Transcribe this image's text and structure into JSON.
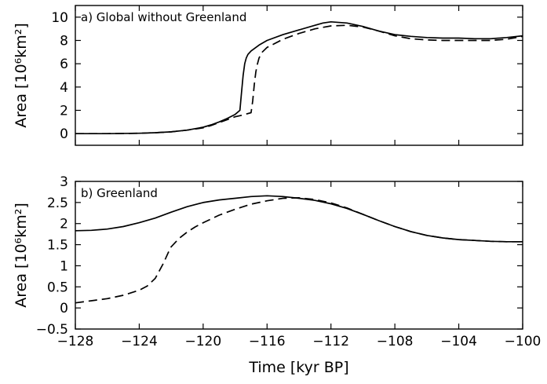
{
  "chart_data": [
    {
      "type": "line",
      "title": "a)  Global without Greenland",
      "xlabel": "",
      "ylabel": "Area [10⁶km²]",
      "xlim": [
        -128,
        -100
      ],
      "ylim": [
        -1,
        11
      ],
      "yticks": [
        "0",
        "2",
        "4",
        "6",
        "8",
        "10"
      ],
      "ytick_values": [
        0,
        2,
        4,
        6,
        8,
        10
      ],
      "grid": false,
      "series": [
        {
          "style": "solid",
          "color": "#000000",
          "x": [
            -128,
            -126,
            -124,
            -123,
            -122,
            -121,
            -120,
            -119.5,
            -119,
            -118.5,
            -118,
            -117.7,
            -117.6,
            -117.5,
            -117.4,
            -117.3,
            -117.2,
            -117,
            -116.5,
            -116,
            -115,
            -114,
            -113,
            -112.5,
            -112,
            -111,
            -110,
            -109,
            -108,
            -107,
            -106,
            -105,
            -104,
            -103,
            -102,
            -101,
            -100
          ],
          "y": [
            0,
            0,
            0.03,
            0.08,
            0.15,
            0.3,
            0.55,
            0.75,
            1.0,
            1.3,
            1.65,
            2.0,
            3.5,
            5.0,
            6.0,
            6.5,
            6.8,
            7.1,
            7.6,
            8.0,
            8.5,
            8.9,
            9.3,
            9.5,
            9.6,
            9.5,
            9.2,
            8.8,
            8.5,
            8.35,
            8.25,
            8.2,
            8.2,
            8.15,
            8.15,
            8.25,
            8.4
          ]
        },
        {
          "style": "dashed",
          "color": "#000000",
          "x": [
            -128,
            -126,
            -124,
            -123,
            -122,
            -121,
            -120,
            -119.5,
            -119,
            -118.5,
            -118,
            -117.5,
            -117,
            -116.9,
            -116.8,
            -116.7,
            -116.6,
            -116.5,
            -116.3,
            -116,
            -115,
            -114,
            -113,
            -112,
            -111,
            -110,
            -109,
            -108,
            -107,
            -106,
            -105,
            -104,
            -103,
            -102,
            -101,
            -100
          ],
          "y": [
            0,
            0,
            0.03,
            0.08,
            0.15,
            0.3,
            0.5,
            0.7,
            0.95,
            1.2,
            1.45,
            1.6,
            1.8,
            2.8,
            4.2,
            5.3,
            6.0,
            6.5,
            7.0,
            7.4,
            8.1,
            8.6,
            9.0,
            9.25,
            9.3,
            9.15,
            8.8,
            8.4,
            8.15,
            8.05,
            8.0,
            8.0,
            8.0,
            8.0,
            8.1,
            8.35
          ]
        }
      ]
    },
    {
      "type": "line",
      "title": "b)  Greenland",
      "xlabel": "Time [kyr BP]",
      "ylabel": "Area [10⁶km²]",
      "xlim": [
        -128,
        -100
      ],
      "ylim": [
        -0.5,
        3
      ],
      "xticks": [
        "−128",
        "−124",
        "−120",
        "−116",
        "−112",
        "−108",
        "−104",
        "−100"
      ],
      "xtick_values": [
        -128,
        -124,
        -120,
        -116,
        -112,
        -108,
        -104,
        -100
      ],
      "yticks": [
        "−0.5",
        "0",
        "0.5",
        "1",
        "1.5",
        "2",
        "2.5",
        "3"
      ],
      "ytick_values": [
        -0.5,
        0,
        0.5,
        1,
        1.5,
        2,
        2.5,
        3
      ],
      "grid": false,
      "series": [
        {
          "style": "solid",
          "color": "#000000",
          "x": [
            -128,
            -127,
            -126,
            -125,
            -124,
            -123,
            -122,
            -121,
            -120,
            -119,
            -118,
            -117,
            -116,
            -115,
            -114,
            -113,
            -112,
            -111,
            -110,
            -109,
            -108,
            -107,
            -106,
            -105,
            -104,
            -103,
            -102,
            -101,
            -100
          ],
          "y": [
            1.83,
            1.84,
            1.87,
            1.93,
            2.02,
            2.13,
            2.27,
            2.4,
            2.5,
            2.56,
            2.6,
            2.64,
            2.66,
            2.64,
            2.6,
            2.55,
            2.47,
            2.36,
            2.22,
            2.07,
            1.93,
            1.81,
            1.72,
            1.66,
            1.62,
            1.6,
            1.58,
            1.57,
            1.57
          ]
        },
        {
          "style": "dashed",
          "color": "#000000",
          "x": [
            -128,
            -127,
            -126,
            -125,
            -124,
            -123.5,
            -123,
            -122.5,
            -122.2,
            -122,
            -121.5,
            -121,
            -120.5,
            -120,
            -119,
            -118,
            -117,
            -116,
            -115,
            -114,
            -113,
            -112,
            -111,
            -110,
            -109,
            -108,
            -107,
            -106,
            -105,
            -104,
            -103,
            -102,
            -101,
            -100
          ],
          "y": [
            0.12,
            0.17,
            0.22,
            0.3,
            0.42,
            0.52,
            0.7,
            1.05,
            1.3,
            1.45,
            1.65,
            1.8,
            1.92,
            2.02,
            2.2,
            2.34,
            2.46,
            2.54,
            2.6,
            2.61,
            2.57,
            2.49,
            2.37,
            2.22,
            2.07,
            1.93,
            1.81,
            1.72,
            1.66,
            1.62,
            1.6,
            1.58,
            1.57,
            1.57
          ]
        }
      ]
    }
  ]
}
